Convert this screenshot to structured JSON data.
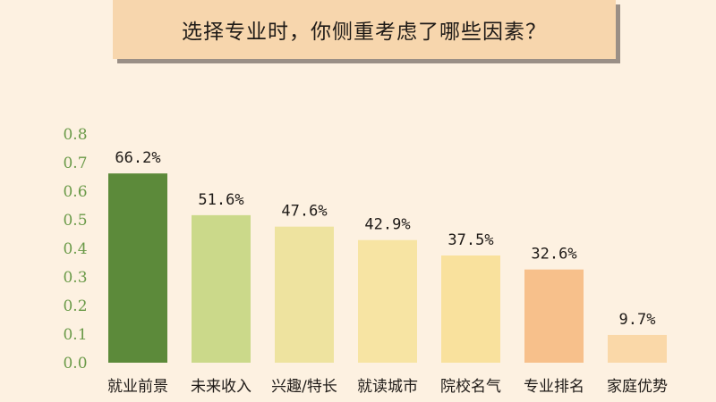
{
  "title": "选择专业时，你侧重考虑了哪些因素？",
  "chart_data": {
    "type": "bar",
    "title": "选择专业时，你侧重考虑了哪些因素？",
    "xlabel": "",
    "ylabel": "",
    "ylim": [
      0,
      0.8
    ],
    "yticks": [
      "0.0",
      "0.1",
      "0.2",
      "0.3",
      "0.4",
      "0.5",
      "0.6",
      "0.7",
      "0.8"
    ],
    "grid": false,
    "categories": [
      "就业前景",
      "未来收入",
      "兴趣/特长",
      "就读城市",
      "院校名气",
      "专业排名",
      "家庭优势"
    ],
    "values": [
      0.662,
      0.516,
      0.476,
      0.429,
      0.375,
      0.326,
      0.097
    ],
    "data_labels": [
      "66.2%",
      "51.6%",
      "47.6%",
      "42.9%",
      "37.5%",
      "32.6%",
      "9.7%"
    ],
    "colors": [
      "#5c8a3a",
      "#cbd98a",
      "#eee39f",
      "#f7e4a3",
      "#f9e19d",
      "#f7c08b",
      "#fad8a8"
    ]
  }
}
